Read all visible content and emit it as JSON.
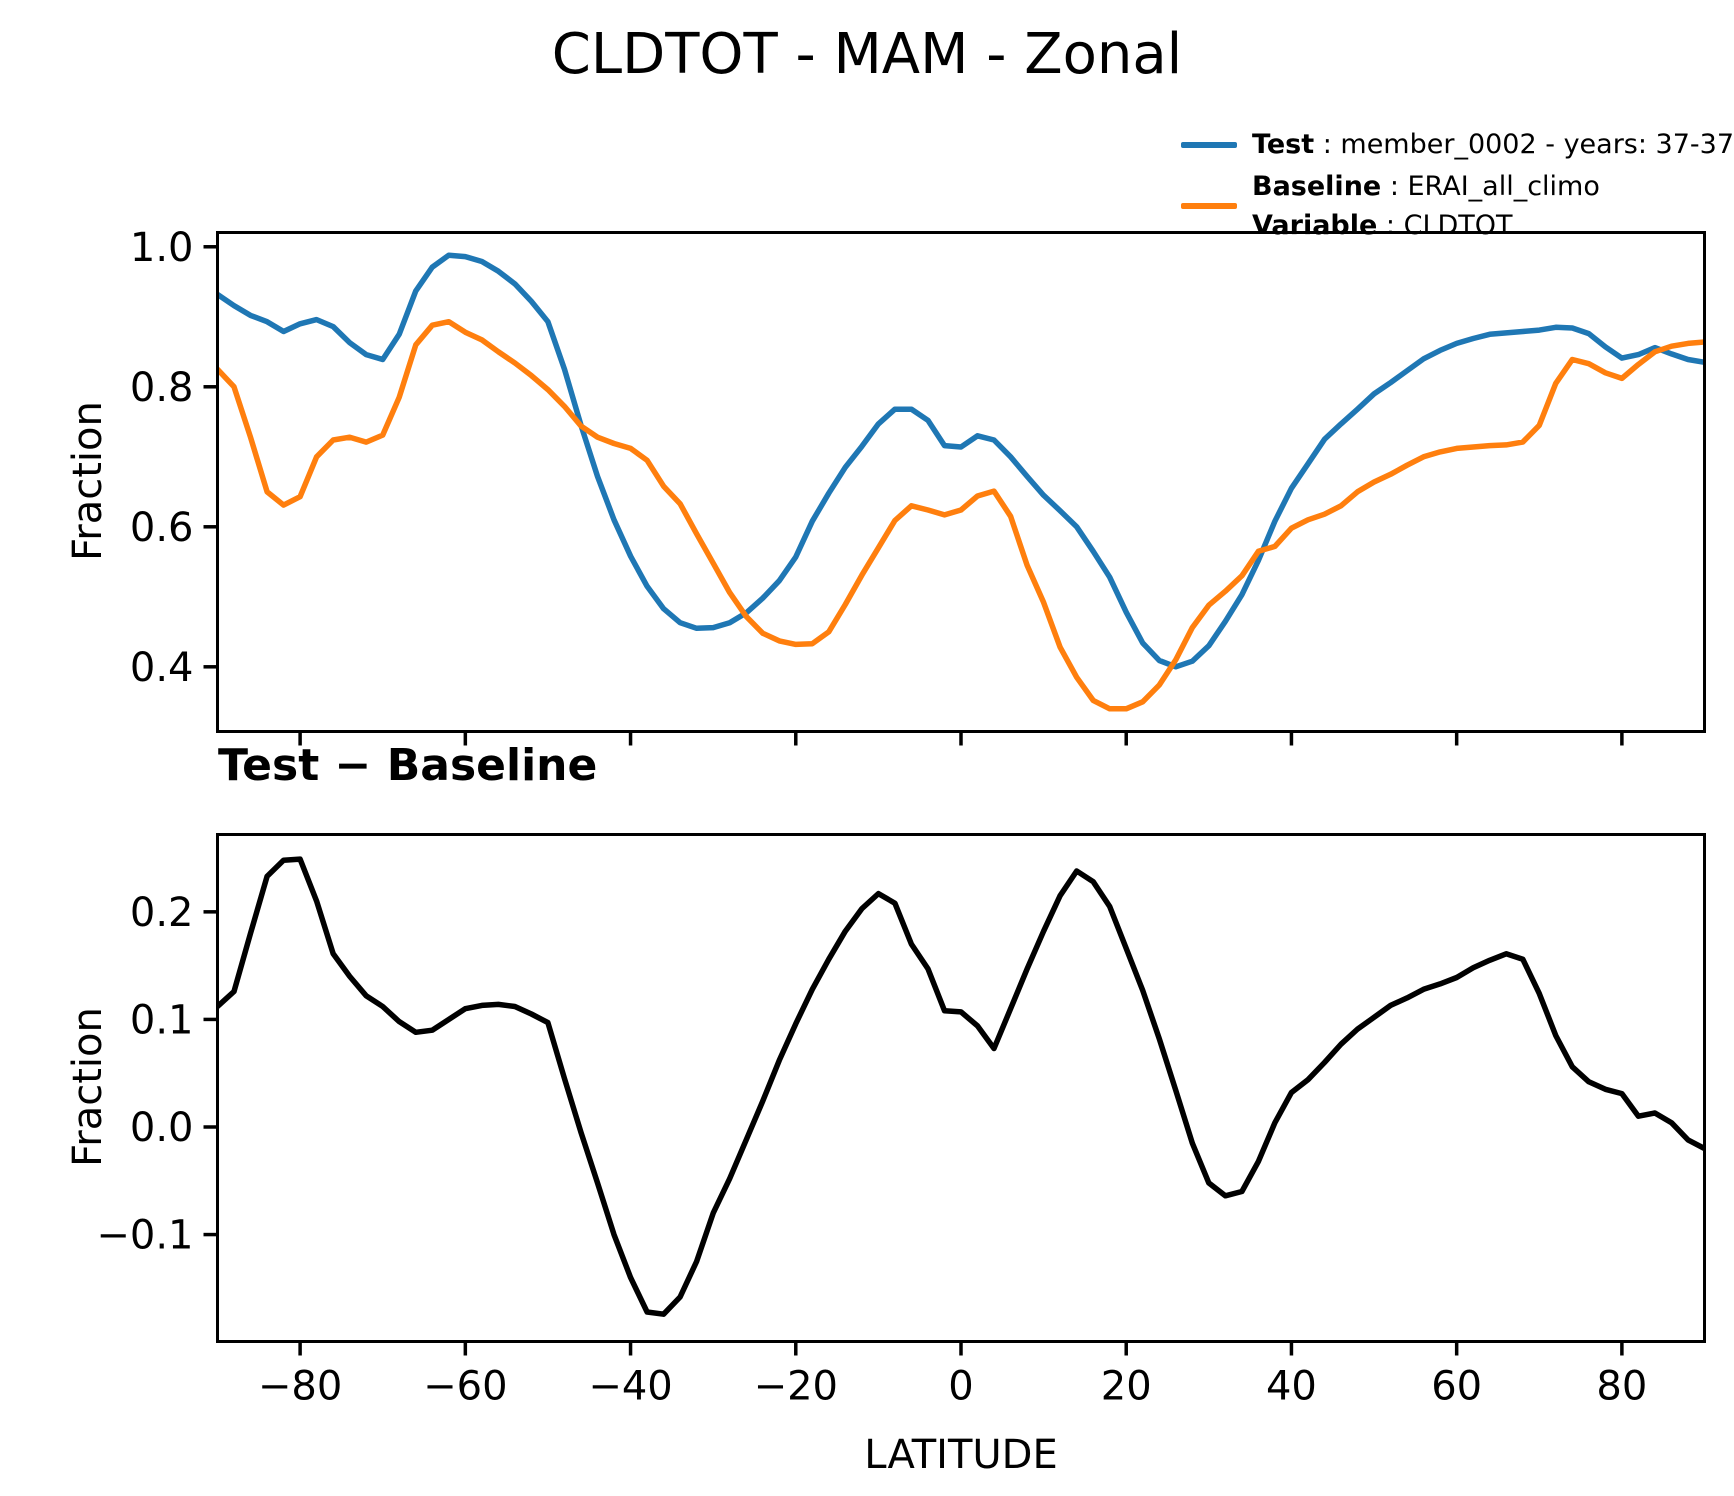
{
  "page_title": "CLDTOT - MAM - Zonal",
  "legend": {
    "test": {
      "label": "Test",
      "value": " : member_0002 - years: 37-37",
      "color": "#1f77b4"
    },
    "baseline": {
      "label": "Baseline",
      "value": " : ERAI_all_climo",
      "color": "#ff7f0e"
    },
    "variable": {
      "label": "Variable",
      "value": " : CLDTOT"
    }
  },
  "chart_data": [
    {
      "type": "line",
      "title": "CLDTOT - MAM - Zonal",
      "xlabel": "",
      "ylabel": "Fraction",
      "xlim": [
        -90,
        90
      ],
      "ylim": [
        0.3076,
        1.0204
      ],
      "xticks": [
        -80,
        -60,
        -40,
        -20,
        0,
        20,
        40,
        60,
        80
      ],
      "yticks": [
        0.4,
        0.6,
        0.8,
        1.0
      ],
      "x_tick_labels_visible": false,
      "grid": false,
      "legend_position": "upper right, above axes",
      "series": [
        {
          "name": "Test",
          "legend_text": "Test : member_0002 - years: 37-37",
          "color": "#1f77b4",
          "x": [
            -90,
            -88,
            -86,
            -84,
            -82,
            -80,
            -78,
            -76,
            -74,
            -72,
            -70,
            -68,
            -66,
            -64,
            -62,
            -60,
            -58,
            -56,
            -54,
            -52,
            -50,
            -48,
            -46,
            -44,
            -42,
            -40,
            -38,
            -36,
            -34,
            -32,
            -30,
            -28,
            -26,
            -24,
            -22,
            -20,
            -18,
            -16,
            -14,
            -12,
            -10,
            -8,
            -6,
            -4,
            -2,
            0,
            2,
            4,
            6,
            8,
            10,
            12,
            14,
            16,
            18,
            20,
            22,
            24,
            26,
            28,
            30,
            32,
            34,
            36,
            38,
            40,
            42,
            44,
            46,
            48,
            50,
            52,
            54,
            56,
            58,
            60,
            62,
            64,
            66,
            68,
            70,
            72,
            74,
            76,
            78,
            80,
            82,
            84,
            86,
            88,
            90
          ],
          "y": [
            0.932,
            0.916,
            0.902,
            0.893,
            0.879,
            0.89,
            0.896,
            0.886,
            0.863,
            0.846,
            0.839,
            0.875,
            0.937,
            0.971,
            0.988,
            0.986,
            0.979,
            0.965,
            0.947,
            0.922,
            0.893,
            0.825,
            0.745,
            0.672,
            0.61,
            0.558,
            0.515,
            0.483,
            0.463,
            0.455,
            0.456,
            0.463,
            0.477,
            0.498,
            0.523,
            0.557,
            0.608,
            0.648,
            0.685,
            0.715,
            0.747,
            0.768,
            0.768,
            0.752,
            0.716,
            0.714,
            0.73,
            0.724,
            0.7,
            0.672,
            0.645,
            0.623,
            0.6,
            0.565,
            0.528,
            0.478,
            0.434,
            0.409,
            0.4,
            0.408,
            0.43,
            0.465,
            0.503,
            0.552,
            0.608,
            0.655,
            0.69,
            0.725,
            0.747,
            0.768,
            0.79,
            0.806,
            0.823,
            0.84,
            0.852,
            0.862,
            0.869,
            0.875,
            0.877,
            0.879,
            0.881,
            0.885,
            0.884,
            0.876,
            0.857,
            0.841,
            0.846,
            0.856,
            0.847,
            0.839,
            0.835
          ]
        },
        {
          "name": "Baseline",
          "legend_text": "Baseline : ERAI_all_climo | Variable : CLDTOT",
          "color": "#ff7f0e",
          "x": [
            -90,
            -88,
            -86,
            -84,
            -82,
            -80,
            -78,
            -76,
            -74,
            -72,
            -70,
            -68,
            -66,
            -64,
            -62,
            -60,
            -58,
            -56,
            -54,
            -52,
            -50,
            -48,
            -46,
            -44,
            -42,
            -40,
            -38,
            -36,
            -34,
            -32,
            -30,
            -28,
            -26,
            -24,
            -22,
            -20,
            -18,
            -16,
            -14,
            -12,
            -10,
            -8,
            -6,
            -4,
            -2,
            0,
            2,
            4,
            6,
            8,
            10,
            12,
            14,
            16,
            18,
            20,
            22,
            24,
            26,
            28,
            30,
            32,
            34,
            36,
            38,
            40,
            42,
            44,
            46,
            48,
            50,
            52,
            54,
            56,
            58,
            60,
            62,
            64,
            66,
            68,
            70,
            72,
            74,
            76,
            78,
            80,
            82,
            84,
            86,
            88,
            90
          ],
          "y": [
            0.825,
            0.8,
            0.728,
            0.65,
            0.631,
            0.643,
            0.7,
            0.724,
            0.728,
            0.721,
            0.731,
            0.785,
            0.86,
            0.888,
            0.893,
            0.878,
            0.867,
            0.85,
            0.834,
            0.816,
            0.796,
            0.772,
            0.744,
            0.728,
            0.719,
            0.712,
            0.695,
            0.658,
            0.633,
            0.59,
            0.548,
            0.506,
            0.472,
            0.448,
            0.437,
            0.432,
            0.433,
            0.45,
            0.489,
            0.531,
            0.57,
            0.609,
            0.63,
            0.624,
            0.617,
            0.624,
            0.644,
            0.651,
            0.615,
            0.545,
            0.492,
            0.428,
            0.385,
            0.352,
            0.34,
            0.34,
            0.35,
            0.374,
            0.41,
            0.456,
            0.488,
            0.508,
            0.53,
            0.565,
            0.572,
            0.598,
            0.61,
            0.618,
            0.63,
            0.65,
            0.664,
            0.675,
            0.688,
            0.7,
            0.707,
            0.712,
            0.714,
            0.716,
            0.717,
            0.721,
            0.745,
            0.805,
            0.839,
            0.833,
            0.82,
            0.812,
            0.832,
            0.85,
            0.858,
            0.862,
            0.864
          ]
        }
      ]
    },
    {
      "type": "line",
      "title": "Test − Baseline",
      "xlabel": "LATITUDE",
      "ylabel": "Fraction",
      "xlim": [
        -90,
        90
      ],
      "ylim": [
        -0.1994,
        0.2719
      ],
      "xticks": [
        -80,
        -60,
        -40,
        -20,
        0,
        20,
        40,
        60,
        80
      ],
      "yticks": [
        -0.1,
        0.0,
        0.1,
        0.2
      ],
      "x_tick_labels_visible": true,
      "grid": false,
      "series": [
        {
          "name": "Test - Baseline difference",
          "color": "#000000",
          "x": [
            -90,
            -88,
            -86,
            -84,
            -82,
            -80,
            -78,
            -76,
            -74,
            -72,
            -70,
            -68,
            -66,
            -64,
            -62,
            -60,
            -58,
            -56,
            -54,
            -52,
            -50,
            -48,
            -46,
            -44,
            -42,
            -40,
            -38,
            -36,
            -34,
            -32,
            -30,
            -28,
            -26,
            -24,
            -22,
            -20,
            -18,
            -16,
            -14,
            -12,
            -10,
            -8,
            -6,
            -4,
            -2,
            0,
            2,
            4,
            6,
            8,
            10,
            12,
            14,
            16,
            18,
            20,
            22,
            24,
            26,
            28,
            30,
            32,
            34,
            36,
            38,
            40,
            42,
            44,
            46,
            48,
            50,
            52,
            54,
            56,
            58,
            60,
            62,
            64,
            66,
            68,
            70,
            72,
            74,
            76,
            78,
            80,
            82,
            84,
            86,
            88,
            90
          ],
          "y": [
            0.112,
            0.126,
            0.18,
            0.233,
            0.248,
            0.249,
            0.21,
            0.161,
            0.14,
            0.122,
            0.112,
            0.098,
            0.088,
            0.09,
            0.1,
            0.11,
            0.113,
            0.114,
            0.112,
            0.105,
            0.097,
            0.045,
            -0.005,
            -0.052,
            -0.1,
            -0.14,
            -0.172,
            -0.174,
            -0.158,
            -0.125,
            -0.08,
            -0.048,
            -0.012,
            0.024,
            0.062,
            0.096,
            0.128,
            0.156,
            0.182,
            0.203,
            0.217,
            0.208,
            0.17,
            0.147,
            0.108,
            0.107,
            0.094,
            0.073,
            0.11,
            0.147,
            0.182,
            0.215,
            0.238,
            0.228,
            0.205,
            0.166,
            0.127,
            0.082,
            0.034,
            -0.015,
            -0.052,
            -0.064,
            -0.06,
            -0.032,
            0.004,
            0.032,
            0.044,
            0.06,
            0.077,
            0.091,
            0.102,
            0.113,
            0.12,
            0.128,
            0.133,
            0.139,
            0.148,
            0.155,
            0.161,
            0.156,
            0.124,
            0.085,
            0.056,
            0.042,
            0.035,
            0.031,
            0.01,
            0.013,
            0.004,
            -0.012,
            -0.02
          ]
        }
      ]
    }
  ]
}
